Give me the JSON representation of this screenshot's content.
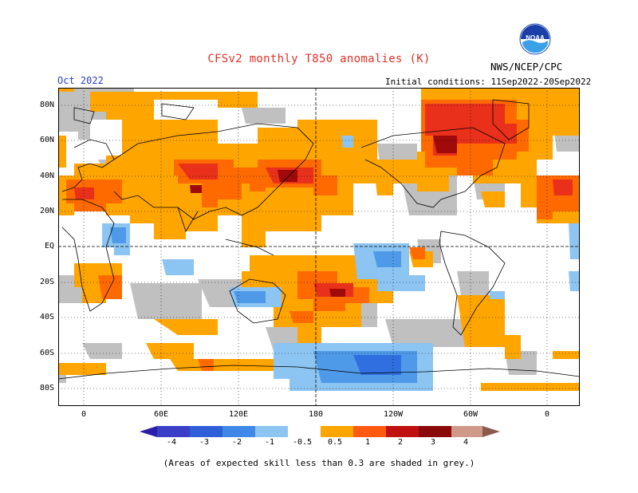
{
  "header": {
    "title": "CFSv2 monthly T850 anomalies (K)",
    "org": "NWS/NCEP/CPC",
    "logo_text": "NOAA",
    "month": "Oct 2022",
    "initial_conditions": "Initial conditions: 11Sep2022-20Sep2022"
  },
  "map": {
    "lat_labels": [
      "80N",
      "60N",
      "40N",
      "20N",
      "EQ",
      "20S",
      "40S",
      "60S",
      "80S"
    ],
    "lon_labels": [
      "0",
      "60E",
      "120E",
      "180",
      "120W",
      "60W",
      "0"
    ]
  },
  "colorbar": {
    "labels": [
      "-4",
      "-3",
      "-2",
      "-1",
      "-0.5",
      "0.5",
      "1",
      "2",
      "3",
      "4"
    ],
    "colors": [
      "#2a1fa8",
      "#3b4fd0",
      "#2f6fe0",
      "#4f9ae8",
      "#8cc4f2",
      "#ffffff",
      "#ffa500",
      "#ff7a00",
      "#ec3a1a",
      "#b01010",
      "#7a0a0a",
      "#d09a8a",
      "#9a6a5a"
    ]
  },
  "footnote": "(Areas of expected skill less than 0.3 are shaded in grey.)"
}
